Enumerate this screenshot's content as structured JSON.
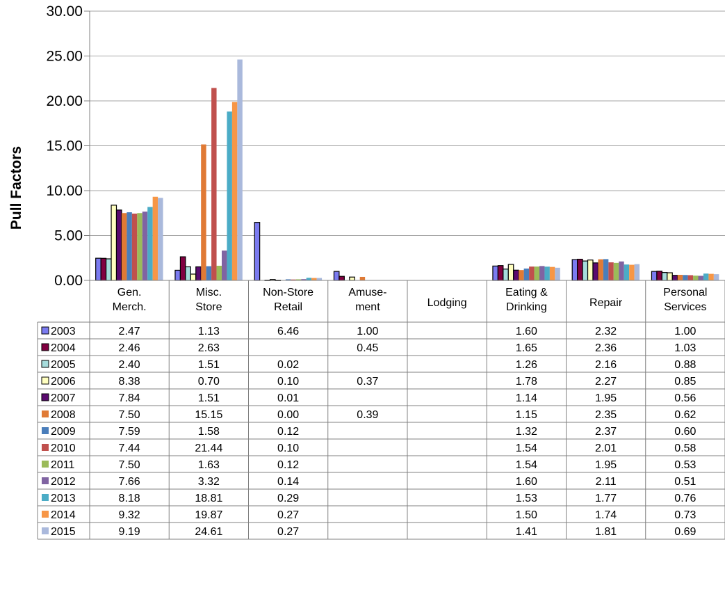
{
  "chart_data": {
    "type": "bar",
    "ylabel": "Pull Factors",
    "ylim": [
      0,
      30
    ],
    "yticks": [
      "0.00",
      "5.00",
      "10.00",
      "15.00",
      "20.00",
      "25.00",
      "30.00"
    ],
    "grid": true,
    "legend": "data-table",
    "categories": [
      [
        "Gen.",
        "Merch."
      ],
      [
        "Misc.",
        "Store"
      ],
      [
        "Non-Store",
        "Retail"
      ],
      [
        "Amuse-",
        "ment"
      ],
      [
        "Lodging"
      ],
      [
        "Eating &",
        "Drinking"
      ],
      [
        "Repair"
      ],
      [
        "Personal",
        "Services"
      ]
    ],
    "series": [
      {
        "name": "2003",
        "color": "#7b7bf0",
        "values": [
          2.47,
          1.13,
          6.46,
          1.0,
          null,
          1.6,
          2.32,
          1.0
        ],
        "labels": [
          "2.47",
          "1.13",
          "6.46",
          "1.00",
          "",
          "1.60",
          "2.32",
          "1.00"
        ]
      },
      {
        "name": "2004",
        "color": "#800040",
        "values": [
          2.46,
          2.63,
          null,
          0.45,
          null,
          1.65,
          2.36,
          1.03
        ],
        "labels": [
          "2.46",
          "2.63",
          "",
          "0.45",
          "",
          "1.65",
          "2.36",
          "1.03"
        ]
      },
      {
        "name": "2005",
        "color": "#a6dcdc",
        "values": [
          2.4,
          1.51,
          0.02,
          null,
          null,
          1.26,
          2.16,
          0.88
        ],
        "labels": [
          "2.40",
          "1.51",
          "0.02",
          "",
          "",
          "1.26",
          "2.16",
          "0.88"
        ]
      },
      {
        "name": "2006",
        "color": "#ffffc0",
        "values": [
          8.38,
          0.7,
          0.1,
          0.37,
          null,
          1.78,
          2.27,
          0.85
        ],
        "labels": [
          "8.38",
          "0.70",
          "0.10",
          "0.37",
          "",
          "1.78",
          "2.27",
          "0.85"
        ]
      },
      {
        "name": "2007",
        "color": "#5a0a6e",
        "values": [
          7.84,
          1.51,
          0.01,
          null,
          null,
          1.14,
          1.95,
          0.56
        ],
        "labels": [
          "7.84",
          "1.51",
          "0.01",
          "",
          "",
          "1.14",
          "1.95",
          "0.56"
        ]
      },
      {
        "name": "2008",
        "color": "#e07a35",
        "values": [
          7.5,
          15.15,
          0.0,
          0.39,
          null,
          1.15,
          2.35,
          0.62
        ],
        "labels": [
          "7.50",
          "15.15",
          "0.00",
          "0.39",
          "",
          "1.15",
          "2.35",
          "0.62"
        ]
      },
      {
        "name": "2009",
        "color": "#4a7ebb",
        "values": [
          7.59,
          1.58,
          0.12,
          null,
          null,
          1.32,
          2.37,
          0.6
        ],
        "labels": [
          "7.59",
          "1.58",
          "0.12",
          "",
          "",
          "1.32",
          "2.37",
          "0.60"
        ]
      },
      {
        "name": "2010",
        "color": "#c0504d",
        "values": [
          7.44,
          21.44,
          0.1,
          null,
          null,
          1.54,
          2.01,
          0.58
        ],
        "labels": [
          "7.44",
          "21.44",
          "0.10",
          "",
          "",
          "1.54",
          "2.01",
          "0.58"
        ]
      },
      {
        "name": "2011",
        "color": "#9bbb59",
        "values": [
          7.5,
          1.63,
          0.12,
          null,
          null,
          1.54,
          1.95,
          0.53
        ],
        "labels": [
          "7.50",
          "1.63",
          "0.12",
          "",
          "",
          "1.54",
          "1.95",
          "0.53"
        ]
      },
      {
        "name": "2012",
        "color": "#8064a2",
        "values": [
          7.66,
          3.32,
          0.14,
          null,
          null,
          1.6,
          2.11,
          0.51
        ],
        "labels": [
          "7.66",
          "3.32",
          "0.14",
          "",
          "",
          "1.60",
          "2.11",
          "0.51"
        ]
      },
      {
        "name": "2013",
        "color": "#4bacc6",
        "values": [
          8.18,
          18.81,
          0.29,
          null,
          null,
          1.53,
          1.77,
          0.76
        ],
        "labels": [
          "8.18",
          "18.81",
          "0.29",
          "",
          "",
          "1.53",
          "1.77",
          "0.76"
        ]
      },
      {
        "name": "2014",
        "color": "#f79646",
        "values": [
          9.32,
          19.87,
          0.27,
          null,
          null,
          1.5,
          1.74,
          0.73
        ],
        "labels": [
          "9.32",
          "19.87",
          "0.27",
          "",
          "",
          "1.50",
          "1.74",
          "0.73"
        ]
      },
      {
        "name": "2015",
        "color": "#aab9dc",
        "values": [
          9.19,
          24.61,
          0.27,
          null,
          null,
          1.41,
          1.81,
          0.69
        ],
        "labels": [
          "9.19",
          "24.61",
          "0.27",
          "",
          "",
          "1.41",
          "1.81",
          "0.69"
        ]
      }
    ]
  }
}
